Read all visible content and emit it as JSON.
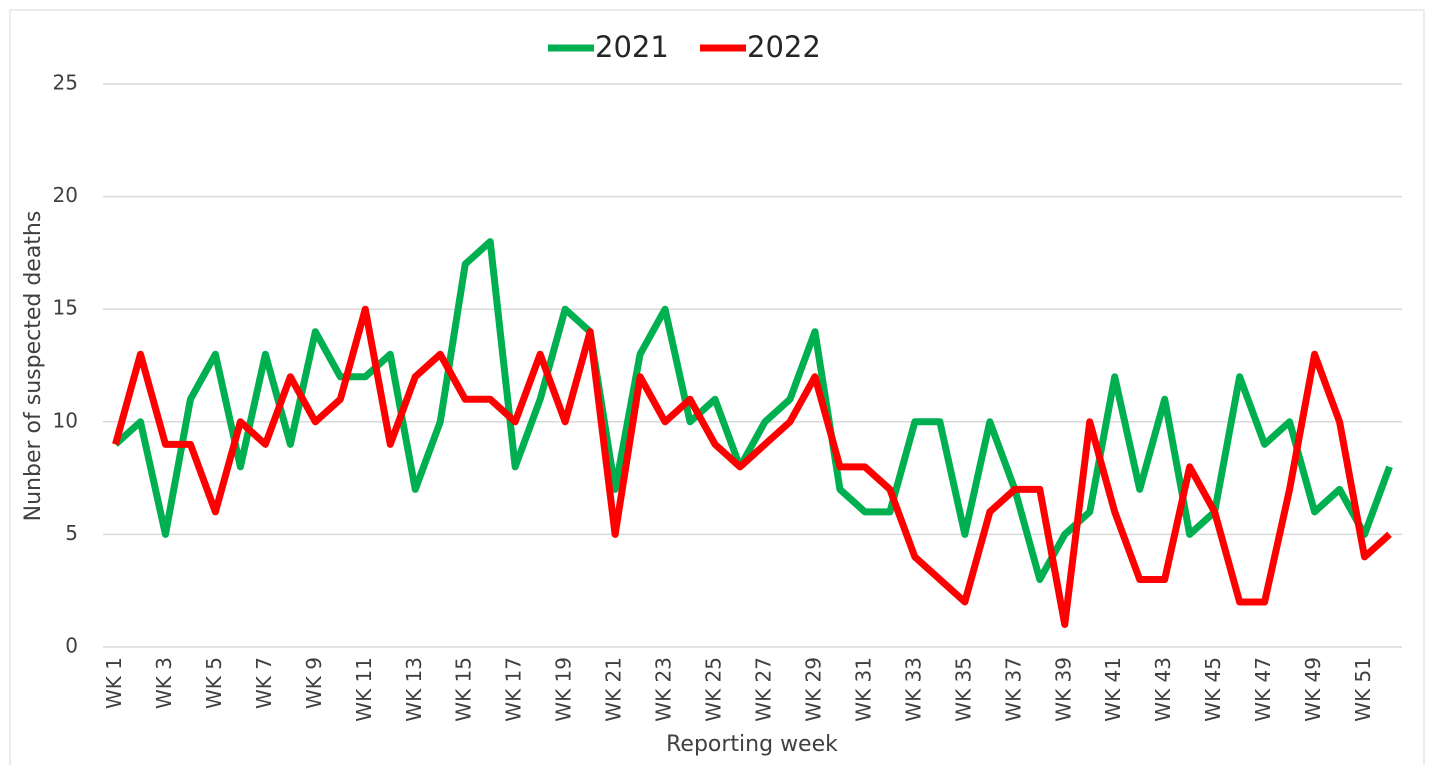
{
  "chart_data": {
    "type": "line",
    "y_label": "Nunber of suspected deaths",
    "x_label": "Reporting week",
    "categories": [
      "WK 1",
      null,
      "WK 3",
      null,
      "WK 5",
      null,
      "WK 7",
      null,
      "WK 9",
      null,
      "WK 11",
      null,
      "WK 13",
      null,
      "WK 15",
      null,
      "WK 17",
      null,
      "WK 19",
      null,
      "WK 21",
      null,
      "WK 23",
      null,
      "WK 25",
      null,
      "WK 27",
      null,
      "WK 29",
      null,
      "WK 31",
      null,
      "WK 33",
      null,
      "WK 35",
      null,
      "WK 37",
      null,
      "WK 39",
      null,
      "WK 41",
      null,
      "WK 43",
      null,
      "WK 45",
      null,
      "WK 47",
      null,
      "WK 49",
      null,
      "WK 51",
      null
    ],
    "series": [
      {
        "name": "2021",
        "color": "#00b050",
        "values": [
          9,
          10,
          5,
          11,
          13,
          8,
          13,
          9,
          14,
          12,
          12,
          13,
          7,
          10,
          17,
          18,
          8,
          11,
          15,
          14,
          7,
          13,
          15,
          10,
          11,
          8,
          10,
          11,
          14,
          7,
          6,
          6,
          10,
          10,
          5,
          10,
          7,
          3,
          5,
          6,
          12,
          7,
          11,
          5,
          6,
          12,
          9,
          10,
          6,
          7,
          5,
          8
        ]
      },
      {
        "name": "2022",
        "color": "#ff0000",
        "values": [
          9,
          13,
          9,
          9,
          6,
          10,
          9,
          12,
          10,
          11,
          15,
          9,
          12,
          13,
          11,
          11,
          10,
          13,
          10,
          14,
          5,
          12,
          10,
          11,
          9,
          8,
          9,
          10,
          12,
          8,
          8,
          7,
          4,
          3,
          2,
          6,
          7,
          7,
          1,
          10,
          6,
          3,
          3,
          8,
          6,
          2,
          2,
          7,
          13,
          10,
          4,
          5
        ]
      }
    ],
    "ylim": [
      0,
      25
    ],
    "yticks": [
      0,
      5,
      10,
      15,
      20,
      25
    ],
    "grid": true,
    "legend": "top"
  }
}
